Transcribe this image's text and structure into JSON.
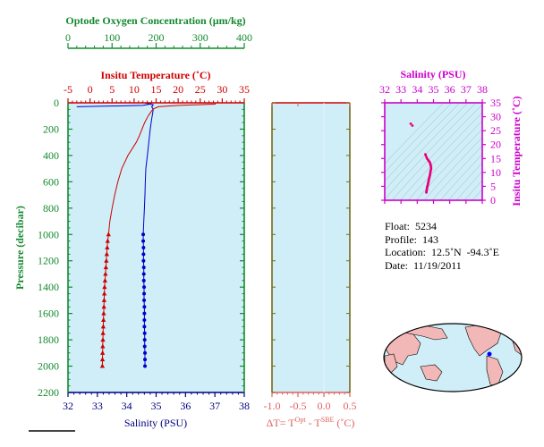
{
  "colors": {
    "panel_bg": "#cfeef7",
    "green": "#138a2e",
    "red": "#d00000",
    "blue": "#0000cc",
    "magenta": "#cc00cc",
    "salmon": "#e06060",
    "navy": "#000080",
    "olive": "#7a6a1a"
  },
  "info": {
    "float": "Float:  5234",
    "profile": "Profile:  143",
    "location": "Location:  12.5˚N  -94.3˚E",
    "date": "Date:  11/19/2011"
  },
  "chart_data": [
    {
      "type": "line",
      "name": "profile-panel",
      "title_oxygen": "Optode Oxygen Concentration (µm/kg)",
      "title_temperature": "Insitu Temperature (˚C)",
      "xlabel": "Salinity (PSU)",
      "ylabel": "Pressure (decibar)",
      "oxygen_ticks": [
        "0",
        "100",
        "200",
        "300",
        "400"
      ],
      "oxygen_range": [
        0,
        400
      ],
      "temperature_ticks": [
        "-5",
        "0",
        "5",
        "10",
        "15",
        "20",
        "25",
        "30",
        "35"
      ],
      "temperature_range": [
        -5,
        35
      ],
      "salinity_ticks": [
        "32",
        "33",
        "34",
        "35",
        "36",
        "37",
        "38"
      ],
      "salinity_range": [
        32,
        38
      ],
      "pressure_ticks": [
        "0",
        "200",
        "400",
        "600",
        "800",
        "1000",
        "1200",
        "1400",
        "1600",
        "1800",
        "2000",
        "2200"
      ],
      "pressure_range": [
        0,
        2200
      ],
      "temperature_profile": {
        "pressure": [
          0,
          10,
          20,
          30,
          45,
          60,
          80,
          100,
          150,
          200,
          250,
          300,
          400,
          500,
          600,
          700,
          800,
          900,
          1000
        ],
        "values": [
          28.5,
          28.4,
          20,
          15.5,
          14.5,
          14.0,
          13.6,
          13.2,
          12.4,
          11.8,
          11.2,
          10.5,
          8.6,
          7.2,
          6.3,
          5.6,
          5.0,
          4.5,
          4.2
        ]
      },
      "temperature_points": {
        "pressure": [
          1000,
          1050,
          1100,
          1150,
          1200,
          1250,
          1300,
          1350,
          1400,
          1450,
          1500,
          1550,
          1600,
          1650,
          1700,
          1750,
          1800,
          1850,
          1900,
          1950,
          2000
        ],
        "values": [
          4.2,
          4.0,
          3.9,
          3.8,
          3.7,
          3.6,
          3.5,
          3.4,
          3.3,
          3.25,
          3.2,
          3.15,
          3.1,
          3.05,
          3.0,
          2.95,
          2.92,
          2.88,
          2.85,
          2.82,
          2.8
        ]
      },
      "salinity_profile": {
        "pressure": [
          0,
          15,
          30,
          50,
          80,
          120,
          200,
          300,
          400,
          500,
          600,
          700,
          800,
          900,
          1000
        ],
        "values": [
          34.6,
          34.9,
          34.85,
          34.9,
          34.88,
          34.85,
          34.8,
          34.75,
          34.7,
          34.65,
          34.63,
          34.62,
          34.6,
          34.58,
          34.56
        ]
      },
      "salinity_points": {
        "pressure": [
          1000,
          1050,
          1100,
          1150,
          1200,
          1250,
          1300,
          1350,
          1400,
          1450,
          1500,
          1550,
          1600,
          1650,
          1700,
          1750,
          1800,
          1850,
          1900,
          1950,
          2000
        ],
        "values": [
          34.56,
          34.56,
          34.57,
          34.57,
          34.57,
          34.58,
          34.58,
          34.58,
          34.59,
          34.59,
          34.59,
          34.6,
          34.6,
          34.6,
          34.6,
          34.61,
          34.61,
          34.61,
          34.62,
          34.62,
          34.62
        ]
      },
      "oxygen_profile": {
        "pressure": [
          0,
          10,
          20,
          30
        ],
        "values": [
          190,
          185,
          170,
          20
        ]
      }
    },
    {
      "type": "line",
      "name": "delta-t-panel",
      "xlabel": "ΔT= T",
      "xlabel_sup1": "Opt",
      "xlabel_mid": " - T",
      "xlabel_sup2": "SBE",
      "xlabel_end": " (˚C)",
      "x_ticks": [
        "-1.0",
        "-0.5",
        "0.0",
        "0.5"
      ],
      "xlim": [
        -1.0,
        0.5
      ],
      "ylim": [
        0,
        2200
      ]
    },
    {
      "type": "scatter",
      "name": "ts-diagram",
      "title": "Salinity (PSU)",
      "ylabel": "Insitu Temperature (˚C)",
      "x_ticks": [
        "32",
        "33",
        "34",
        "35",
        "36",
        "37",
        "38"
      ],
      "xlim": [
        32,
        38
      ],
      "y_ticks": [
        "0",
        "5",
        "10",
        "15",
        "20",
        "25",
        "30",
        "35"
      ],
      "ylim": [
        0,
        35
      ],
      "points": {
        "salinity": [
          33.6,
          33.7,
          34.5,
          34.6,
          34.7,
          34.75,
          34.8,
          34.82,
          34.85,
          34.85,
          34.82,
          34.8,
          34.78,
          34.75,
          34.72,
          34.7,
          34.68,
          34.66,
          34.64,
          34.62,
          34.6,
          34.6,
          34.58,
          34.57,
          34.56
        ],
        "temperature": [
          27.5,
          26.8,
          16.5,
          15.0,
          14.2,
          13.8,
          13.2,
          12.6,
          12.0,
          11.2,
          10.5,
          9.8,
          9.0,
          8.3,
          7.6,
          7.0,
          6.4,
          5.8,
          5.3,
          4.9,
          4.5,
          4.1,
          3.6,
          3.2,
          2.8
        ]
      }
    }
  ]
}
